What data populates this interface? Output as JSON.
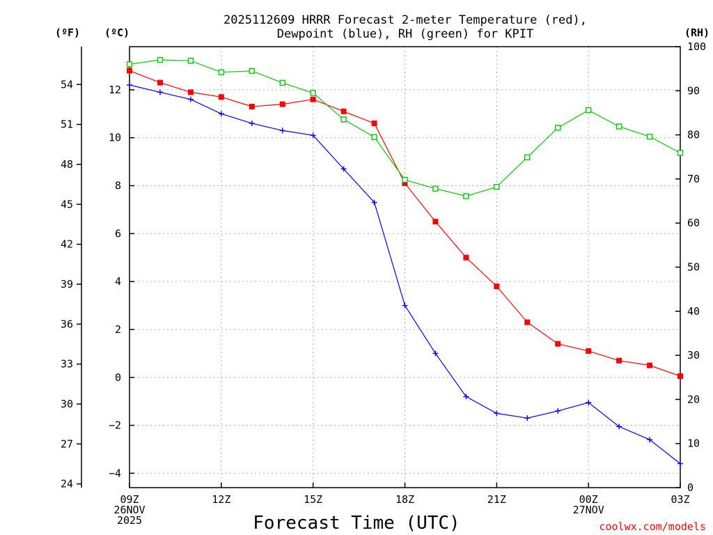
{
  "title_line1": "2025112609 HRRR Forecast 2-meter Temperature (red),",
  "title_line2": "Dewpoint (blue), RH (green) for KPIT",
  "credit": "coolwx.com/models",
  "chart_data": {
    "type": "line",
    "title": "2025112609 HRRR Forecast 2-meter Temperature (red), Dewpoint (blue), RH (green) for KPIT",
    "xlabel": "Forecast Time (UTC)",
    "x_hours": [
      0,
      1,
      2,
      3,
      4,
      5,
      6,
      7,
      8,
      9,
      10,
      11,
      12,
      13,
      14,
      15,
      16,
      17,
      18
    ],
    "x_range": [
      0,
      18
    ],
    "x_ticks": [
      {
        "hour": 0,
        "lines": [
          "09Z",
          "26NOV",
          "2025"
        ]
      },
      {
        "hour": 3,
        "lines": [
          "12Z"
        ]
      },
      {
        "hour": 6,
        "lines": [
          "15Z"
        ]
      },
      {
        "hour": 9,
        "lines": [
          "18Z"
        ]
      },
      {
        "hour": 12,
        "lines": [
          "21Z"
        ]
      },
      {
        "hour": 15,
        "lines": [
          "00Z",
          "27NOV"
        ]
      },
      {
        "hour": 18,
        "lines": [
          "03Z"
        ]
      }
    ],
    "axes": {
      "celsius": {
        "label": "(ºC)",
        "range": [
          -4.6,
          13.8
        ],
        "ticks": [
          -4,
          -2,
          0,
          2,
          4,
          6,
          8,
          10,
          12
        ]
      },
      "fahrenheit": {
        "label": "(ºF)",
        "ticks": [
          24,
          27,
          30,
          33,
          36,
          39,
          42,
          45,
          48,
          51,
          54
        ]
      },
      "rh": {
        "label": "(RH)",
        "range": [
          0,
          100
        ],
        "ticks": [
          0,
          10,
          20,
          30,
          40,
          50,
          60,
          70,
          80,
          90,
          100
        ]
      }
    },
    "grid": true,
    "series": [
      {
        "name": "Temperature",
        "axis": "celsius",
        "color": "#ff0000",
        "marker": "filled-square",
        "values": [
          12.8,
          12.3,
          11.9,
          11.7,
          11.3,
          11.4,
          11.6,
          11.1,
          10.6,
          8.1,
          6.5,
          5.0,
          3.8,
          2.3,
          1.4,
          1.1,
          0.7,
          0.5,
          0.05
        ]
      },
      {
        "name": "Dewpoint",
        "axis": "celsius",
        "color": "#0000ff",
        "marker": "plus",
        "values": [
          12.2,
          11.9,
          11.6,
          11.0,
          10.6,
          10.3,
          10.1,
          8.7,
          7.3,
          3.0,
          1.0,
          -0.8,
          -1.5,
          -1.7,
          -1.4,
          -1.05,
          -2.05,
          -2.6,
          -3.6
        ]
      },
      {
        "name": "RH",
        "axis": "rh",
        "color": "#00cc00",
        "marker": "open-square",
        "values": [
          96.0,
          97.0,
          96.8,
          94.2,
          94.5,
          91.8,
          89.5,
          83.5,
          79.5,
          69.8,
          67.8,
          66.1,
          68.2,
          74.9,
          81.6,
          85.6,
          81.9,
          79.6,
          75.9
        ]
      }
    ]
  }
}
